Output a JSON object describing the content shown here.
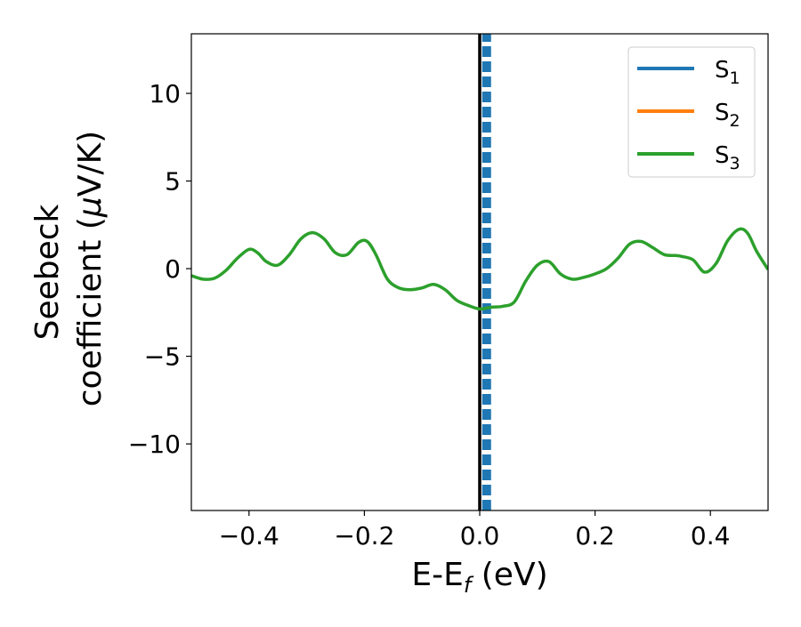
{
  "chart_data": {
    "type": "line",
    "xlabel": {
      "main": "E-E",
      "sub": "f",
      "rest": " (eV)"
    },
    "ylabel": {
      "line1": "Seebeck",
      "line2_a": "coefficient  (",
      "line2_mu": "μ",
      "line2_b": "V/K)"
    },
    "xlim": [
      -0.5,
      0.5
    ],
    "ylim": [
      -13.8,
      13.4
    ],
    "xticks": [
      -0.4,
      -0.2,
      0.0,
      0.2,
      0.4
    ],
    "xtick_labels": [
      "−0.4",
      "−0.2",
      "0.0",
      "0.2",
      "0.4"
    ],
    "yticks": [
      -10,
      -5,
      0,
      5,
      10
    ],
    "ytick_labels": [
      "−10",
      "−5",
      "0",
      "5",
      "10"
    ],
    "legend_position": "top-right",
    "series": [
      {
        "name": "S",
        "sub": "1",
        "color": "#1f77b4",
        "style": "dashed vertical line",
        "x": [
          0.012,
          0.012
        ],
        "y": [
          -13.8,
          13.4
        ]
      },
      {
        "name": "S",
        "sub": "2",
        "color": "#ff7f0e",
        "style": "not visible",
        "x": [],
        "y": []
      },
      {
        "name": "S",
        "sub": "3",
        "color": "#2ca02c",
        "style": "solid",
        "x": [
          -0.5,
          -0.48,
          -0.46,
          -0.44,
          -0.42,
          -0.4,
          -0.385,
          -0.37,
          -0.35,
          -0.33,
          -0.31,
          -0.29,
          -0.27,
          -0.25,
          -0.23,
          -0.21,
          -0.195,
          -0.18,
          -0.16,
          -0.14,
          -0.12,
          -0.1,
          -0.08,
          -0.06,
          -0.04,
          -0.02,
          0.0,
          0.02,
          0.04,
          0.06,
          0.08,
          0.1,
          0.12,
          0.14,
          0.16,
          0.18,
          0.2,
          0.22,
          0.24,
          0.26,
          0.28,
          0.3,
          0.32,
          0.34,
          0.35,
          0.37,
          0.39,
          0.41,
          0.43,
          0.45,
          0.465,
          0.48,
          0.5
        ],
        "y": [
          -0.4,
          -0.6,
          -0.55,
          -0.1,
          0.6,
          1.1,
          0.9,
          0.4,
          0.2,
          0.8,
          1.7,
          2.05,
          1.7,
          0.9,
          0.8,
          1.5,
          1.55,
          0.8,
          -0.6,
          -1.1,
          -1.2,
          -1.1,
          -0.9,
          -1.2,
          -1.8,
          -2.1,
          -2.3,
          -2.2,
          -2.15,
          -1.9,
          -0.7,
          0.2,
          0.4,
          -0.3,
          -0.6,
          -0.5,
          -0.3,
          0.0,
          0.6,
          1.4,
          1.55,
          1.2,
          0.8,
          0.75,
          0.7,
          0.5,
          -0.2,
          0.3,
          1.6,
          2.25,
          2.0,
          1.0,
          -0.05
        ]
      }
    ],
    "reference_line": {
      "x": 0.0,
      "color": "#000000"
    }
  }
}
